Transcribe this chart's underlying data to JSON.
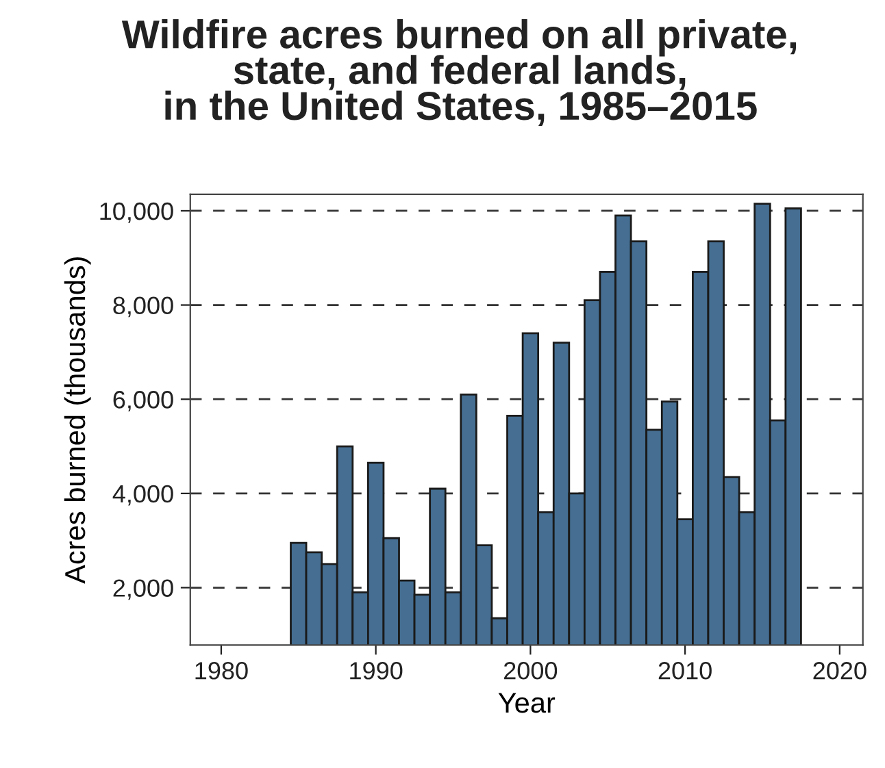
{
  "chart_data": {
    "type": "bar",
    "title": "Wildfire acres burned on all private,\nstate, and federal lands,\nin the United States, 1985–2015",
    "xlabel": "Year",
    "ylabel": "Acres burned (thousands)",
    "x": [
      1985,
      1986,
      1987,
      1988,
      1989,
      1990,
      1991,
      1992,
      1993,
      1994,
      1995,
      1996,
      1997,
      1998,
      1999,
      2000,
      2001,
      2002,
      2003,
      2004,
      2005,
      2006,
      2007,
      2008,
      2009,
      2010,
      2011,
      2012,
      2013,
      2014,
      2015,
      2016,
      2017
    ],
    "values": [
      2950,
      2750,
      2500,
      5000,
      1900,
      4650,
      3050,
      2150,
      1850,
      4100,
      1900,
      6100,
      2900,
      1350,
      5650,
      7400,
      3600,
      7200,
      4000,
      8100,
      8700,
      9900,
      9350,
      5350,
      5950,
      3450,
      8700,
      9350,
      4350,
      3600,
      10150,
      5550,
      10050
    ],
    "color": "#456e92",
    "xlim": [
      1978,
      2021.5
    ],
    "xticks": [
      1980,
      1990,
      2000,
      2010,
      2020
    ],
    "ylim": [
      780,
      10350
    ],
    "yticks": [
      {
        "value": 2000,
        "label": "2,000"
      },
      {
        "value": 4000,
        "label": "4,000"
      },
      {
        "value": 6000,
        "label": "6,000"
      },
      {
        "value": 8000,
        "label": "8,000"
      },
      {
        "value": 10000,
        "label": "10,000"
      }
    ],
    "grid": "y",
    "line_style": "dashed"
  }
}
